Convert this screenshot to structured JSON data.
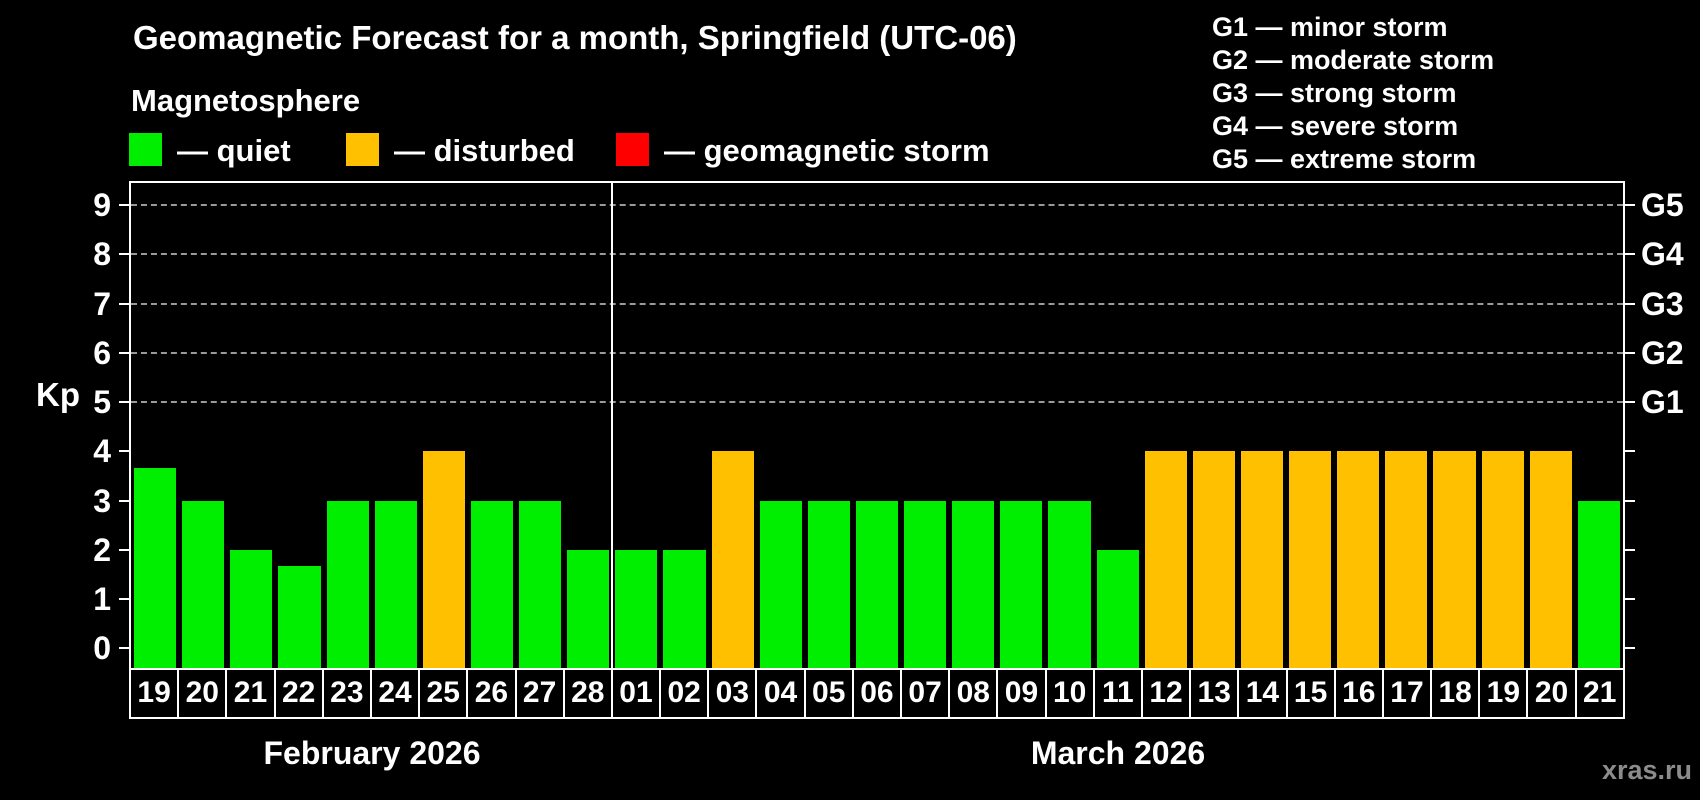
{
  "title": "Geomagnetic Forecast for a month, Springfield (UTC-06)",
  "legend": {
    "heading": "Magnetosphere",
    "items": [
      {
        "name": "quiet",
        "label": "— quiet"
      },
      {
        "name": "disturbed",
        "label": "— disturbed"
      },
      {
        "name": "storm",
        "label": "— geomagnetic storm"
      }
    ]
  },
  "g_legend": {
    "items": [
      "G1 — minor storm",
      "G2 — moderate storm",
      "G3 — strong storm",
      "G4 — severe storm",
      "G5 — extreme storm"
    ]
  },
  "axes": {
    "kp_label": "Kp",
    "y_ticks": [
      "0",
      "1",
      "2",
      "3",
      "4",
      "5",
      "6",
      "7",
      "8",
      "9"
    ]
  },
  "months": [
    {
      "label": "February 2026"
    },
    {
      "label": "March 2026"
    }
  ],
  "watermark": "xras.ru",
  "colors": {
    "quiet": "#00ee00",
    "disturbed": "#ffc000",
    "storm": "#ff0000",
    "background": "#000000",
    "grid": "#9a9a9a",
    "axis": "#ffffff"
  },
  "chart_data": {
    "type": "bar",
    "title": "Geomagnetic Forecast for a month, Springfield (UTC-06)",
    "ylabel": "Kp",
    "ylim": [
      0,
      9
    ],
    "gridlines": [
      5,
      6,
      7,
      8,
      9
    ],
    "right_axis_labels": {
      "5": "G1",
      "6": "G2",
      "7": "G3",
      "8": "G4",
      "9": "G5"
    },
    "legend_position": "top",
    "points": [
      {
        "month": "February 2026",
        "day": "19",
        "kp": 3.67,
        "status": "quiet"
      },
      {
        "month": "February 2026",
        "day": "20",
        "kp": 3,
        "status": "quiet"
      },
      {
        "month": "February 2026",
        "day": "21",
        "kp": 2,
        "status": "quiet"
      },
      {
        "month": "February 2026",
        "day": "22",
        "kp": 1.67,
        "status": "quiet"
      },
      {
        "month": "February 2026",
        "day": "23",
        "kp": 3,
        "status": "quiet"
      },
      {
        "month": "February 2026",
        "day": "24",
        "kp": 3,
        "status": "quiet"
      },
      {
        "month": "February 2026",
        "day": "25",
        "kp": 4,
        "status": "disturbed"
      },
      {
        "month": "February 2026",
        "day": "26",
        "kp": 3,
        "status": "quiet"
      },
      {
        "month": "February 2026",
        "day": "27",
        "kp": 3,
        "status": "quiet"
      },
      {
        "month": "February 2026",
        "day": "28",
        "kp": 2,
        "status": "quiet"
      },
      {
        "month": "March 2026",
        "day": "01",
        "kp": 2,
        "status": "quiet"
      },
      {
        "month": "March 2026",
        "day": "02",
        "kp": 2,
        "status": "quiet"
      },
      {
        "month": "March 2026",
        "day": "03",
        "kp": 4,
        "status": "disturbed"
      },
      {
        "month": "March 2026",
        "day": "04",
        "kp": 3,
        "status": "quiet"
      },
      {
        "month": "March 2026",
        "day": "05",
        "kp": 3,
        "status": "quiet"
      },
      {
        "month": "March 2026",
        "day": "06",
        "kp": 3,
        "status": "quiet"
      },
      {
        "month": "March 2026",
        "day": "07",
        "kp": 3,
        "status": "quiet"
      },
      {
        "month": "March 2026",
        "day": "08",
        "kp": 3,
        "status": "quiet"
      },
      {
        "month": "March 2026",
        "day": "09",
        "kp": 3,
        "status": "quiet"
      },
      {
        "month": "March 2026",
        "day": "10",
        "kp": 3,
        "status": "quiet"
      },
      {
        "month": "March 2026",
        "day": "11",
        "kp": 2,
        "status": "quiet"
      },
      {
        "month": "March 2026",
        "day": "12",
        "kp": 4,
        "status": "disturbed"
      },
      {
        "month": "March 2026",
        "day": "13",
        "kp": 4,
        "status": "disturbed"
      },
      {
        "month": "March 2026",
        "day": "14",
        "kp": 4,
        "status": "disturbed"
      },
      {
        "month": "March 2026",
        "day": "15",
        "kp": 4,
        "status": "disturbed"
      },
      {
        "month": "March 2026",
        "day": "16",
        "kp": 4,
        "status": "disturbed"
      },
      {
        "month": "March 2026",
        "day": "17",
        "kp": 4,
        "status": "disturbed"
      },
      {
        "month": "March 2026",
        "day": "18",
        "kp": 4,
        "status": "disturbed"
      },
      {
        "month": "March 2026",
        "day": "19",
        "kp": 4,
        "status": "disturbed"
      },
      {
        "month": "March 2026",
        "day": "20",
        "kp": 4,
        "status": "disturbed"
      },
      {
        "month": "March 2026",
        "day": "21",
        "kp": 3,
        "status": "quiet"
      }
    ]
  }
}
